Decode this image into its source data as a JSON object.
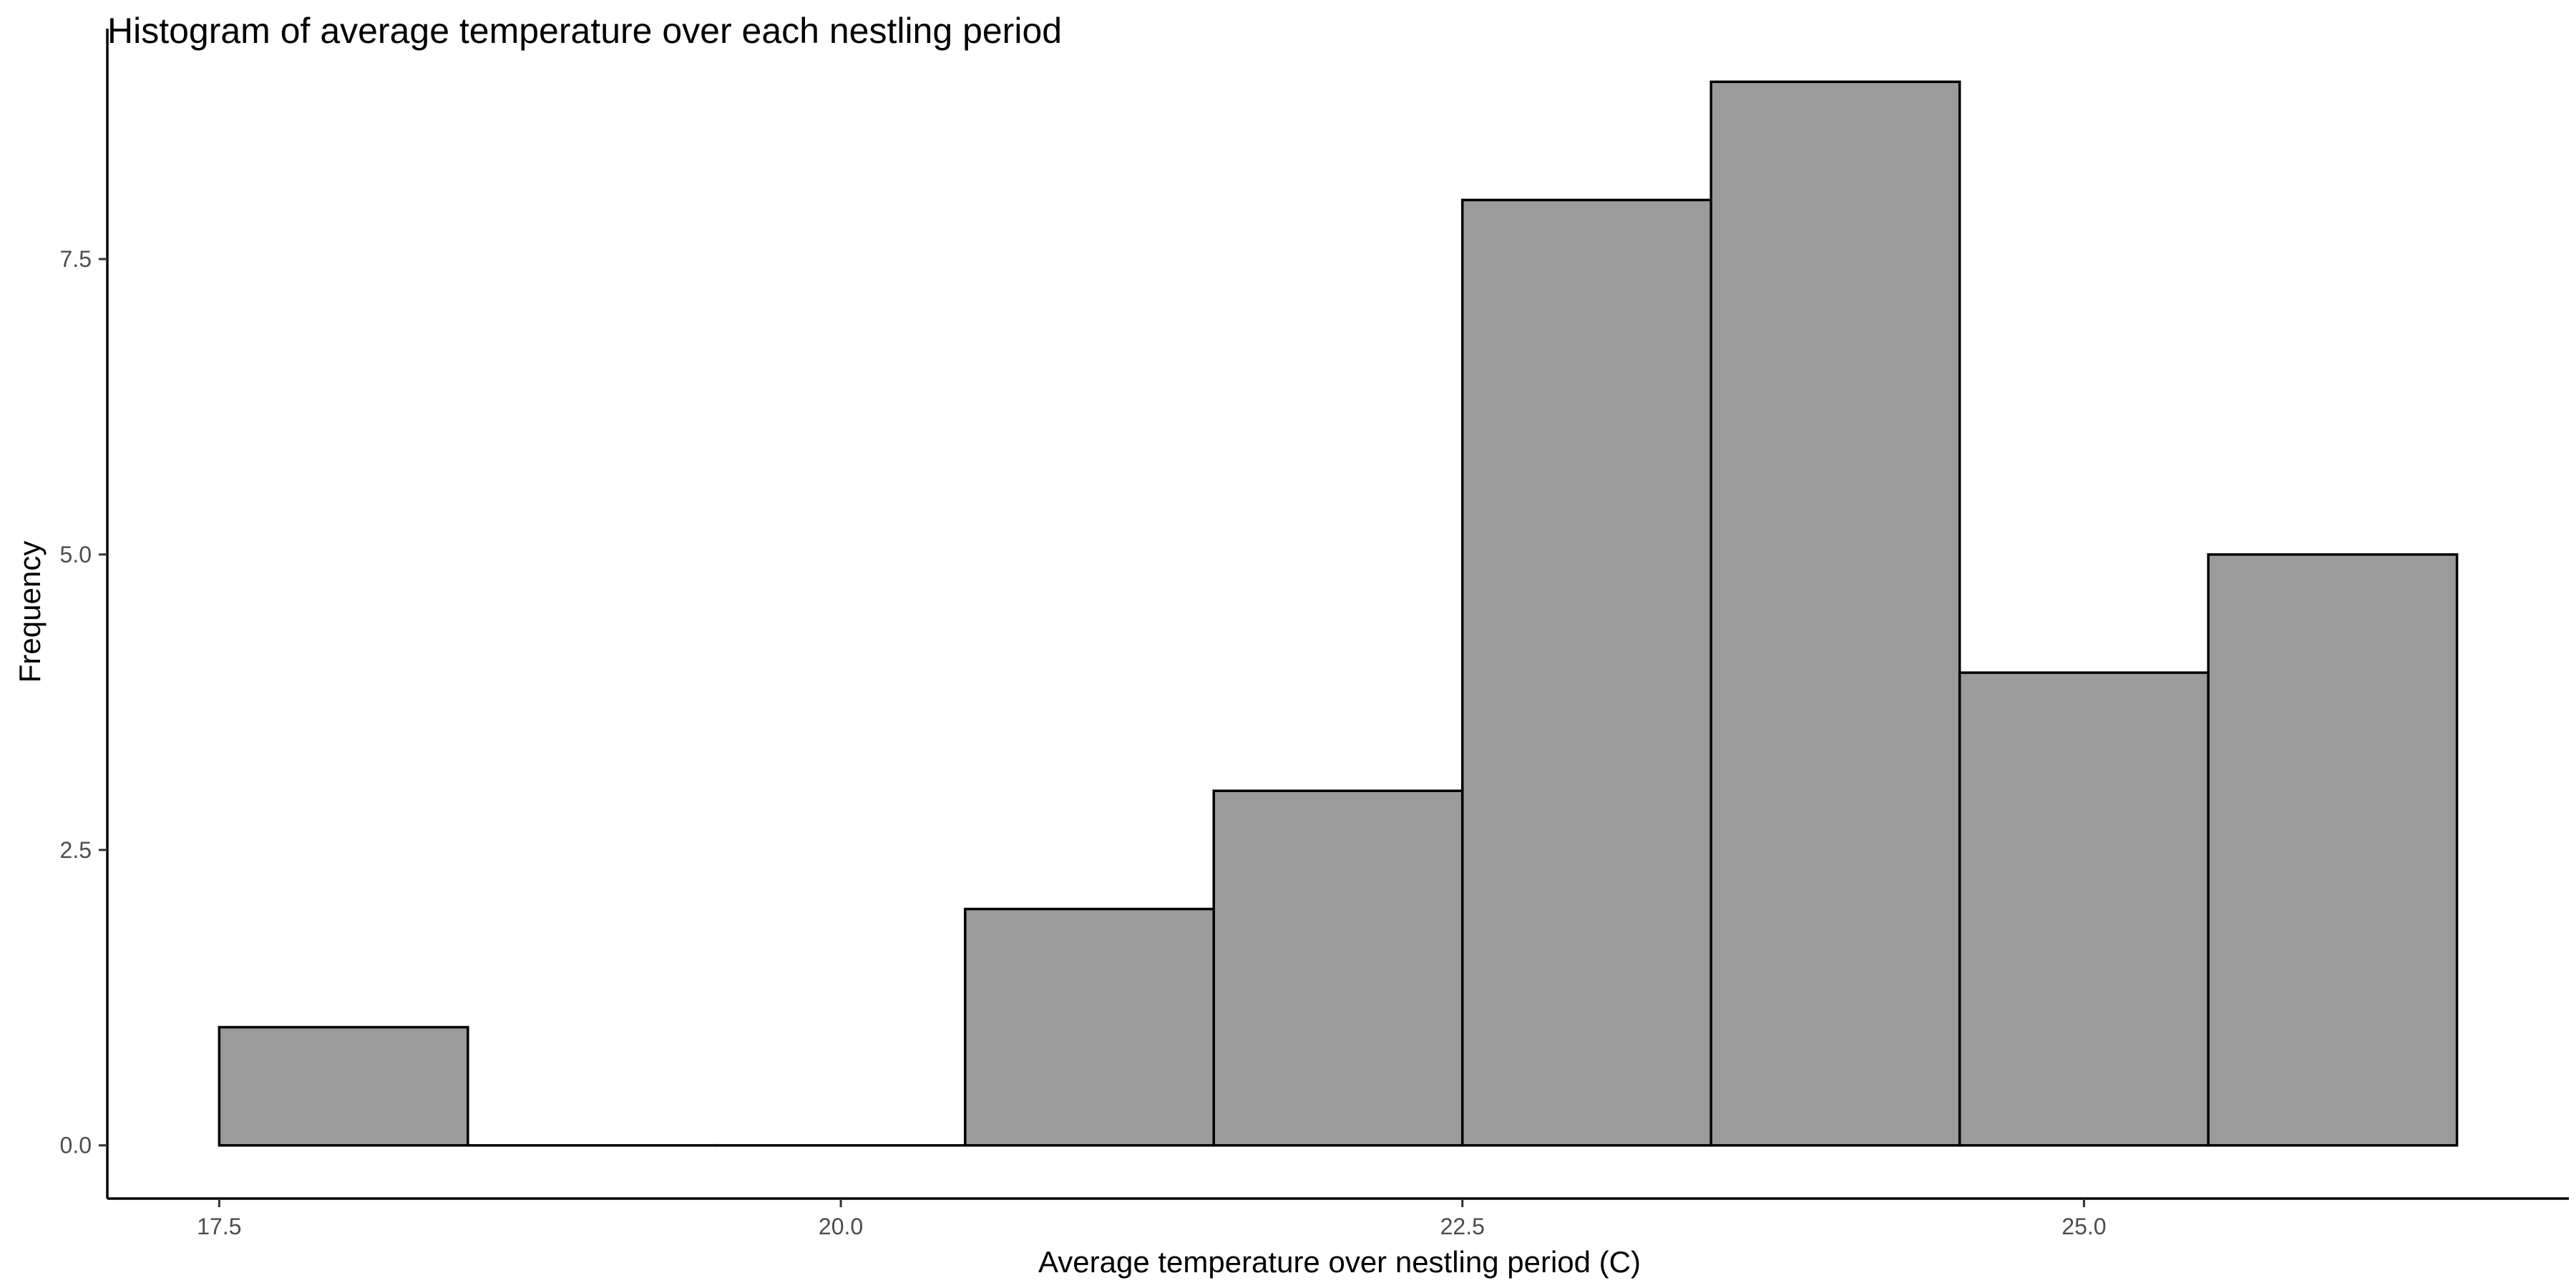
{
  "chart_data": {
    "type": "bar",
    "title": "Histogram of average temperature over each nestling period",
    "xlabel": "Average temperature over nestling period (C)",
    "ylabel": "Frequency",
    "bins": [
      {
        "x_start": 17.5,
        "x_end": 18.5,
        "count": 1
      },
      {
        "x_start": 18.5,
        "x_end": 19.5,
        "count": 0
      },
      {
        "x_start": 19.5,
        "x_end": 20.5,
        "count": 0
      },
      {
        "x_start": 20.5,
        "x_end": 21.5,
        "count": 2
      },
      {
        "x_start": 21.5,
        "x_end": 22.5,
        "count": 3
      },
      {
        "x_start": 22.5,
        "x_end": 23.5,
        "count": 8
      },
      {
        "x_start": 23.5,
        "x_end": 24.5,
        "count": 9
      },
      {
        "x_start": 24.5,
        "x_end": 25.5,
        "count": 4
      },
      {
        "x_start": 25.5,
        "x_end": 26.5,
        "count": 5
      }
    ],
    "x_ticks": [
      17.5,
      20.0,
      22.5,
      25.0
    ],
    "x_tick_labels": [
      "17.5",
      "20.0",
      "22.5",
      "25.0"
    ],
    "y_ticks": [
      0,
      2.5,
      5,
      7.5
    ],
    "y_tick_labels": [
      "0.0",
      "2.5",
      "5.0",
      "7.5"
    ],
    "xlim": [
      17.05,
      26.95
    ],
    "ylim": [
      -0.45,
      9.45
    ],
    "grid": false,
    "bar_fill": "#9b9b9b",
    "bar_outline": "#000000"
  }
}
